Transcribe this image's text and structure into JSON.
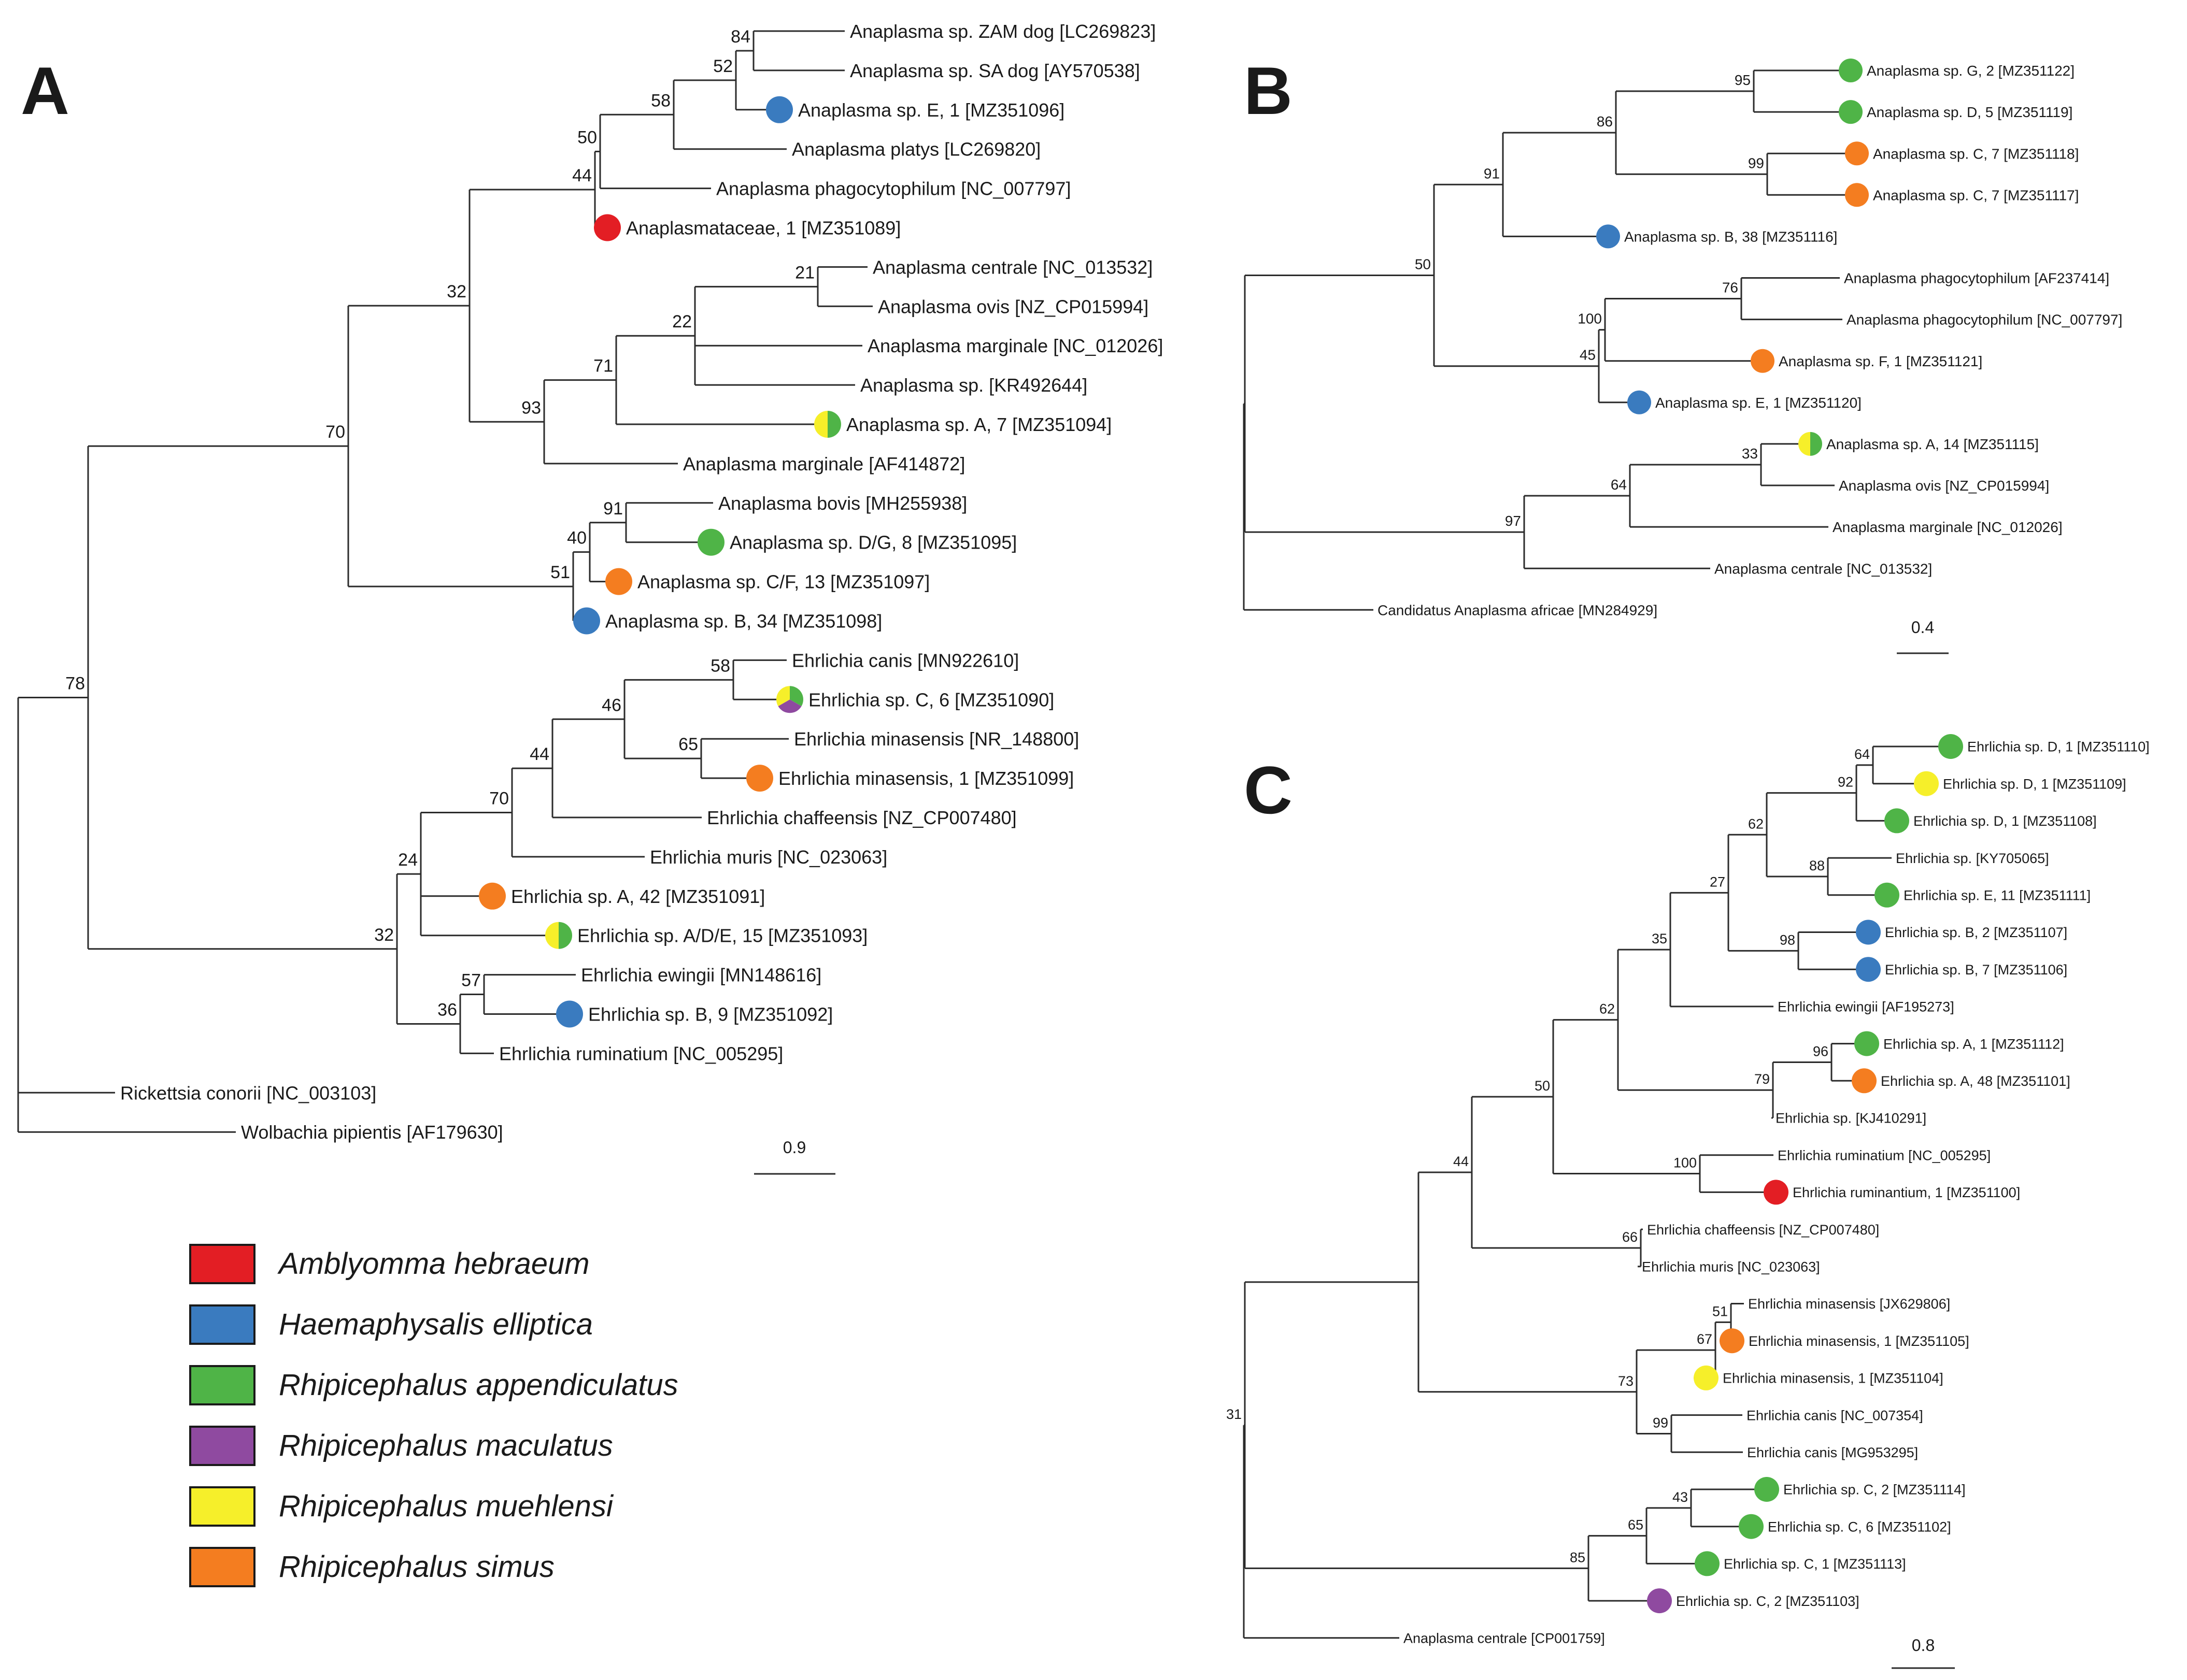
{
  "colors": {
    "Amblyomma hebraeum": "#e31e24",
    "Haemaphysalis elliptica": "#3a7bbf",
    "Rhipicephalus appendiculatus": "#4fb447",
    "Rhipicephalus maculatus": "#8f4aa0",
    "Rhipicephalus muehlensi": "#f6ef2a",
    "Rhipicephalus simus": "#f47d20"
  },
  "legend": [
    {
      "label": "Amblyomma hebraeum",
      "color": "#e31e24"
    },
    {
      "label": "Haemaphysalis elliptica",
      "color": "#3a7bbf"
    },
    {
      "label": "Rhipicephalus appendiculatus",
      "color": "#4fb447"
    },
    {
      "label": "Rhipicephalus maculatus",
      "color": "#8f4aa0"
    },
    {
      "label": "Rhipicephalus muehlensi",
      "color": "#f6ef2a"
    },
    {
      "label": "Rhipicephalus simus",
      "color": "#f47d20"
    }
  ],
  "panels": {
    "A": {
      "label": "A",
      "scale": "0.9",
      "support": [
        "84",
        "52",
        "58",
        "50",
        "44",
        "21",
        "22",
        "71",
        "93",
        "32",
        "70",
        "91",
        "40",
        "51",
        "78",
        "58",
        "46",
        "65",
        "44",
        "70",
        "24",
        "57",
        "36",
        "32"
      ],
      "leaves": [
        {
          "name": "Anaplasma sp. ZAM dog [LC269823]"
        },
        {
          "name": "Anaplasma sp. SA dog [AY570538]"
        },
        {
          "name": "Anaplasma sp. E, 1 [MZ351096]",
          "hosts": [
            "Haemaphysalis elliptica"
          ]
        },
        {
          "name": "Anaplasma platys [LC269820]"
        },
        {
          "name": "Anaplasma phagocytophilum [NC_007797]"
        },
        {
          "name": "Anaplasmataceae, 1 [MZ351089]",
          "hosts": [
            "Amblyomma hebraeum"
          ]
        },
        {
          "name": "Anaplasma centrale [NC_013532]"
        },
        {
          "name": "Anaplasma ovis [NZ_CP015994]"
        },
        {
          "name": "Anaplasma marginale [NC_012026]"
        },
        {
          "name": "Anaplasma sp. [KR492644]"
        },
        {
          "name": "Anaplasma sp. A, 7 [MZ351094]",
          "hosts": [
            "Rhipicephalus appendiculatus",
            "Rhipicephalus muehlensi"
          ]
        },
        {
          "name": "Anaplasma marginale [AF414872]"
        },
        {
          "name": "Anaplasma bovis [MH255938]"
        },
        {
          "name": "Anaplasma sp. D/G, 8 [MZ351095]",
          "hosts": [
            "Rhipicephalus appendiculatus"
          ]
        },
        {
          "name": "Anaplasma sp. C/F, 13 [MZ351097]",
          "hosts": [
            "Rhipicephalus simus"
          ]
        },
        {
          "name": "Anaplasma sp. B, 34 [MZ351098]",
          "hosts": [
            "Haemaphysalis elliptica"
          ]
        },
        {
          "name": "Ehrlichia canis [MN922610]"
        },
        {
          "name": "Ehrlichia sp. C, 6 [MZ351090]",
          "hosts": [
            "Rhipicephalus appendiculatus",
            "Rhipicephalus maculatus",
            "Rhipicephalus muehlensi"
          ]
        },
        {
          "name": "Ehrlichia minasensis [NR_148800]"
        },
        {
          "name": "Ehrlichia minasensis, 1 [MZ351099]",
          "hosts": [
            "Rhipicephalus simus"
          ]
        },
        {
          "name": "Ehrlichia chaffeensis [NZ_CP007480]"
        },
        {
          "name": "Ehrlichia muris [NC_023063]"
        },
        {
          "name": "Ehrlichia sp. A, 42 [MZ351091]",
          "hosts": [
            "Rhipicephalus simus"
          ]
        },
        {
          "name": "Ehrlichia sp. A/D/E, 15 [MZ351093]",
          "hosts": [
            "Rhipicephalus appendiculatus",
            "Rhipicephalus muehlensi"
          ]
        },
        {
          "name": "Ehrlichia ewingii [MN148616]"
        },
        {
          "name": "Ehrlichia sp. B, 9 [MZ351092]",
          "hosts": [
            "Haemaphysalis elliptica"
          ]
        },
        {
          "name": "Ehrlichia ruminatium [NC_005295]"
        },
        {
          "name": "Rickettsia conorii [NC_003103]"
        },
        {
          "name": "Wolbachia pipientis [AF179630]"
        }
      ]
    },
    "B": {
      "label": "B",
      "scale": "0.4",
      "support": [
        "95",
        "99",
        "86",
        "91",
        "76",
        "100",
        "45",
        "50",
        "33",
        "64",
        "97"
      ],
      "leaves": [
        {
          "name": "Anaplasma sp. G, 2 [MZ351122]",
          "hosts": [
            "Rhipicephalus appendiculatus"
          ]
        },
        {
          "name": "Anaplasma sp. D, 5 [MZ351119]",
          "hosts": [
            "Rhipicephalus appendiculatus"
          ]
        },
        {
          "name": "Anaplasma sp. C, 7 [MZ351118]",
          "hosts": [
            "Rhipicephalus simus"
          ]
        },
        {
          "name": "Anaplasma sp. C, 7 [MZ351117]",
          "hosts": [
            "Rhipicephalus simus"
          ]
        },
        {
          "name": "Anaplasma sp. B, 38 [MZ351116]",
          "hosts": [
            "Haemaphysalis elliptica"
          ]
        },
        {
          "name": "Anaplasma phagocytophilum [AF237414]"
        },
        {
          "name": "Anaplasma phagocytophilum [NC_007797]"
        },
        {
          "name": "Anaplasma sp. F, 1 [MZ351121]",
          "hosts": [
            "Rhipicephalus simus"
          ]
        },
        {
          "name": "Anaplasma sp. E, 1 [MZ351120]",
          "hosts": [
            "Haemaphysalis elliptica"
          ]
        },
        {
          "name": "Anaplasma sp. A, 14 [MZ351115]",
          "hosts": [
            "Rhipicephalus appendiculatus",
            "Rhipicephalus muehlensi"
          ]
        },
        {
          "name": "Anaplasma ovis [NZ_CP015994]"
        },
        {
          "name": "Anaplasma marginale [NC_012026]"
        },
        {
          "name": "Anaplasma centrale [NC_013532]"
        },
        {
          "name": "Candidatus Anaplasma africae [MN284929]"
        }
      ]
    },
    "C": {
      "label": "C",
      "scale": "0.8",
      "support": [
        "64",
        "92",
        "62",
        "88",
        "98",
        "27",
        "35",
        "96",
        "79",
        "62",
        "100",
        "50",
        "66",
        "44",
        "51",
        "67",
        "99",
        "73",
        "43",
        "65",
        "85",
        "31"
      ],
      "leaves": [
        {
          "name": "Ehrlichia sp. D, 1 [MZ351110]",
          "hosts": [
            "Rhipicephalus appendiculatus"
          ]
        },
        {
          "name": "Ehrlichia sp. D, 1 [MZ351109]",
          "hosts": [
            "Rhipicephalus muehlensi"
          ]
        },
        {
          "name": "Ehrlichia sp. D, 1 [MZ351108]",
          "hosts": [
            "Rhipicephalus appendiculatus"
          ]
        },
        {
          "name": "Ehrlichia sp. [KY705065]"
        },
        {
          "name": "Ehrlichia sp. E, 11 [MZ351111]",
          "hosts": [
            "Rhipicephalus appendiculatus"
          ]
        },
        {
          "name": "Ehrlichia sp. B, 2 [MZ351107]",
          "hosts": [
            "Haemaphysalis elliptica"
          ]
        },
        {
          "name": "Ehrlichia sp. B, 7 [MZ351106]",
          "hosts": [
            "Haemaphysalis elliptica"
          ]
        },
        {
          "name": "Ehrlichia ewingii  [AF195273]"
        },
        {
          "name": "Ehrlichia sp. A, 1 [MZ351112]",
          "hosts": [
            "Rhipicephalus appendiculatus"
          ]
        },
        {
          "name": "Ehrlichia sp. A, 48 [MZ351101]",
          "hosts": [
            "Rhipicephalus simus"
          ]
        },
        {
          "name": "Ehrlichia sp. [KJ410291]"
        },
        {
          "name": "Ehrlichia ruminatium [NC_005295]"
        },
        {
          "name": "Ehrlichia ruminantium, 1 [MZ351100]",
          "hosts": [
            "Amblyomma hebraeum"
          ]
        },
        {
          "name": "Ehrlichia chaffeensis [NZ_CP007480]"
        },
        {
          "name": "Ehrlichia muris [NC_023063]"
        },
        {
          "name": "Ehrlichia minasensis [JX629806]"
        },
        {
          "name": "Ehrlichia minasensis, 1 [MZ351105]",
          "hosts": [
            "Rhipicephalus simus"
          ]
        },
        {
          "name": "Ehrlichia minasensis, 1 [MZ351104]",
          "hosts": [
            "Rhipicephalus muehlensi"
          ]
        },
        {
          "name": "Ehrlichia canis [NC_007354]"
        },
        {
          "name": "Ehrlichia canis [MG953295]"
        },
        {
          "name": "Ehrlichia sp. C, 2 [MZ351114]",
          "hosts": [
            "Rhipicephalus appendiculatus"
          ]
        },
        {
          "name": "Ehrlichia sp. C, 6 [MZ351102]",
          "hosts": [
            "Rhipicephalus appendiculatus"
          ]
        },
        {
          "name": "Ehrlichia sp. C, 1 [MZ351113]",
          "hosts": [
            "Rhipicephalus appendiculatus"
          ]
        },
        {
          "name": "Ehrlichia sp. C, 2 [MZ351103]",
          "hosts": [
            "Rhipicephalus maculatus"
          ]
        },
        {
          "name": "Anaplasma centrale [CP001759]"
        }
      ]
    }
  }
}
